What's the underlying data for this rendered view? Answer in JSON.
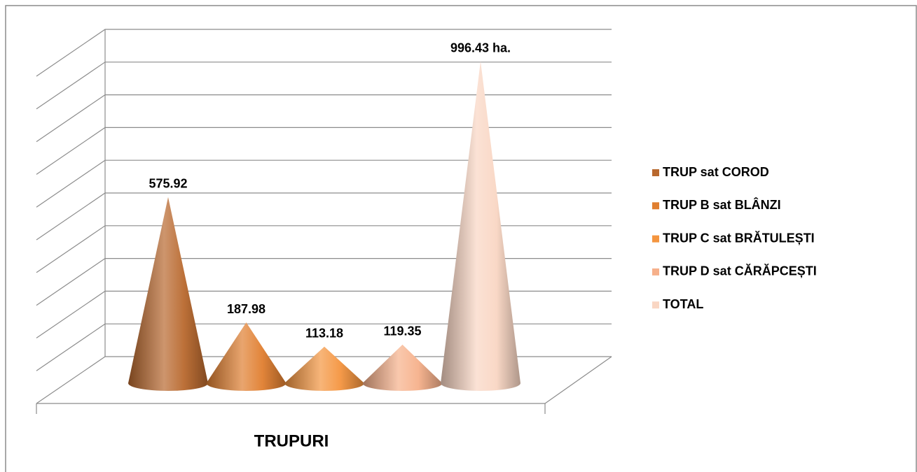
{
  "chart_data": {
    "type": "cone3d",
    "categories": [
      "TRUPURI"
    ],
    "series": [
      {
        "name": "TRUP sat COROD",
        "color": "#b8682e",
        "values": [
          575.92
        ]
      },
      {
        "name": "TRUP B sat BLÂNZI",
        "color": "#e07f30",
        "values": [
          187.98
        ]
      },
      {
        "name": "TRUP C sat BRĂTULEȘTI",
        "color": "#f4953f",
        "values": [
          113.18
        ]
      },
      {
        "name": "TRUP D sat CĂRĂPCEȘTI",
        "color": "#f6b08a",
        "values": [
          119.35
        ]
      },
      {
        "name": "TOTAL",
        "color": "#f9d6c3",
        "values": [
          996.43
        ],
        "value_labels": [
          "996.43 ha."
        ]
      }
    ],
    "ylim": [
      0,
      1000
    ],
    "yticks": [
      0,
      100,
      200,
      300,
      400,
      500,
      600,
      700,
      800,
      900,
      1000
    ],
    "grid": true,
    "legend": "right"
  }
}
